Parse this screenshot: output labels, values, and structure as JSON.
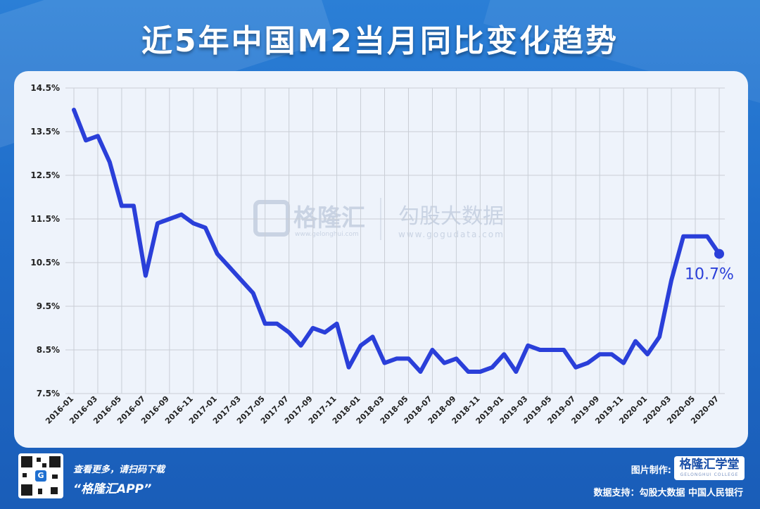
{
  "title": "近5年中国M2当月同比变化趋势",
  "watermark": {
    "brand": "格隆汇",
    "brand_url": "www.gelonghui.com",
    "data_brand": "勾股大数据",
    "data_url": "www.gogudata.com"
  },
  "footer": {
    "scan_text": "查看更多，请扫码下载",
    "app_text": "“格隆汇APP”",
    "made_by_label": "图片制作:",
    "brand_main": "格隆汇学堂",
    "brand_sub": "GELONGHUI COLLEGE",
    "source_text": "数据支持：勾股大数据  中国人民银行"
  },
  "colors": {
    "line": "#2a3fd9",
    "grid": "#c9ced6",
    "panel": "#eef3fb",
    "background": "#1f6cc9"
  },
  "chart_data": {
    "type": "line",
    "title": "近5年中国M2当月同比变化趋势",
    "xlabel": "",
    "ylabel": "",
    "ylim": [
      7.5,
      14.5
    ],
    "y_ticks": [
      "14.5%",
      "13.5%",
      "12.5%",
      "11.5%",
      "10.5%",
      "9.5%",
      "8.5%",
      "7.5%"
    ],
    "x_ticks": [
      "2016-01",
      "2016-03",
      "2016-05",
      "2016-07",
      "2016-09",
      "2016-11",
      "2017-01",
      "2017-03",
      "2017-05",
      "2017-07",
      "2017-09",
      "2017-11",
      "2018-01",
      "2018-03",
      "2018-05",
      "2018-07",
      "2018-09",
      "2018-11",
      "2019-01",
      "2019-03",
      "2019-05",
      "2019-07",
      "2019-09",
      "2019-11",
      "2020-01",
      "2020-03",
      "2020-05",
      "2020-07"
    ],
    "grid": true,
    "legend": "none",
    "annotation": "10.7%",
    "series": [
      {
        "x": [
          "2016-01",
          "2016-02",
          "2016-03",
          "2016-04",
          "2016-05",
          "2016-06",
          "2016-07",
          "2016-08",
          "2016-09",
          "2016-10",
          "2016-11",
          "2016-12",
          "2017-01",
          "2017-02",
          "2017-03",
          "2017-04",
          "2017-05",
          "2017-06",
          "2017-07",
          "2017-08",
          "2017-09",
          "2017-10",
          "2017-11",
          "2017-12",
          "2018-01",
          "2018-02",
          "2018-03",
          "2018-04",
          "2018-05",
          "2018-06",
          "2018-07",
          "2018-08",
          "2018-09",
          "2018-10",
          "2018-11",
          "2018-12",
          "2019-01",
          "2019-02",
          "2019-03",
          "2019-04",
          "2019-05",
          "2019-06",
          "2019-07",
          "2019-08",
          "2019-09",
          "2019-10",
          "2019-11",
          "2019-12",
          "2020-01",
          "2020-02",
          "2020-03",
          "2020-04",
          "2020-05",
          "2020-06",
          "2020-07"
        ],
        "values": [
          14.0,
          13.3,
          13.4,
          12.8,
          11.8,
          11.8,
          10.2,
          11.4,
          11.5,
          11.6,
          11.4,
          11.3,
          10.7,
          10.4,
          10.1,
          9.8,
          9.1,
          9.1,
          8.9,
          8.6,
          9.0,
          8.9,
          9.1,
          8.1,
          8.6,
          8.8,
          8.2,
          8.3,
          8.3,
          8.0,
          8.5,
          8.2,
          8.3,
          8.0,
          8.0,
          8.1,
          8.4,
          8.0,
          8.6,
          8.5,
          8.5,
          8.5,
          8.1,
          8.2,
          8.4,
          8.4,
          8.2,
          8.7,
          8.4,
          8.8,
          10.1,
          11.1,
          11.1,
          11.1,
          10.7
        ]
      }
    ]
  }
}
